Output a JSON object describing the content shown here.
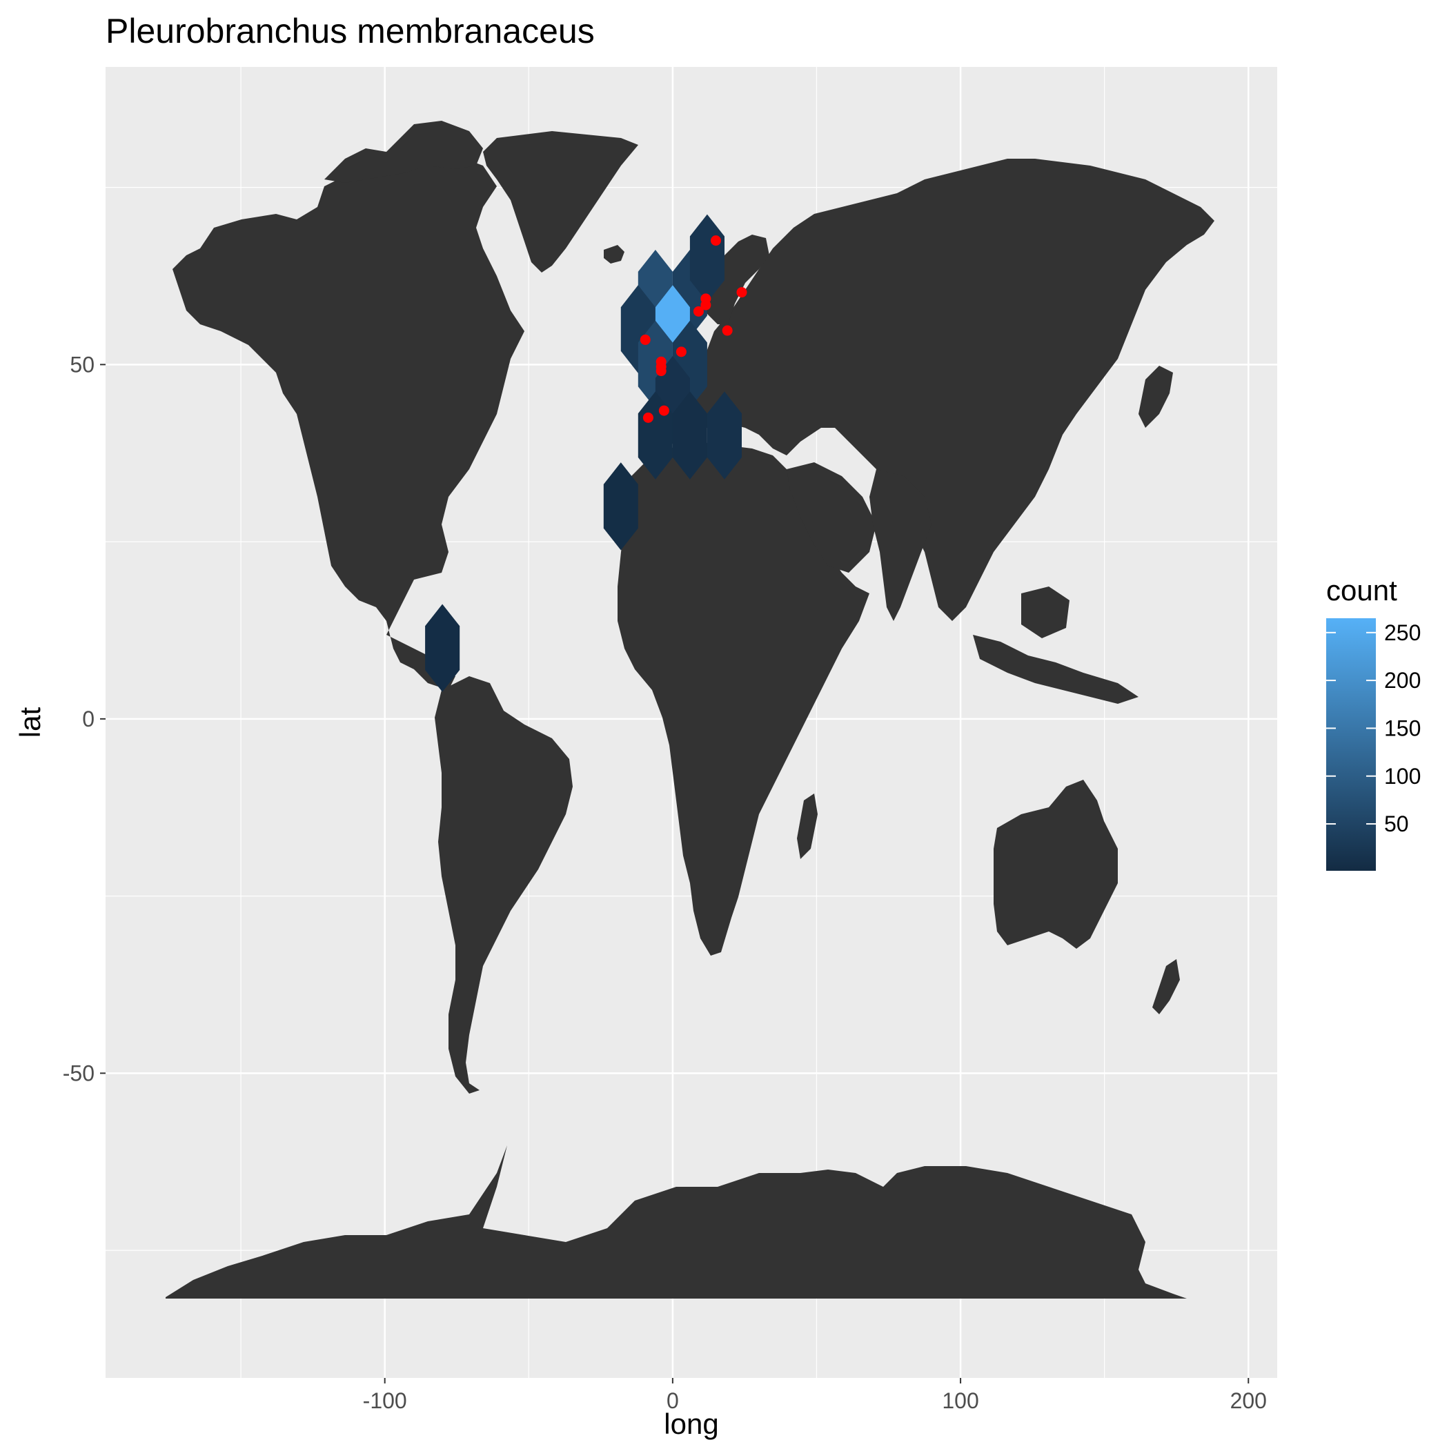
{
  "chart_data": {
    "type": "map-hexbin",
    "title": "Pleurobranchus membranaceus",
    "xlabel": "long",
    "ylabel": "lat",
    "xlim": [
      -197,
      210
    ],
    "ylim": [
      -93,
      92
    ],
    "x_ticks": [
      -100,
      0,
      100,
      200
    ],
    "y_ticks": [
      -50,
      0,
      50
    ],
    "x_tick_labels": [
      "-100",
      "0",
      "100",
      "200"
    ],
    "y_tick_labels": [
      "-50",
      "0",
      "50"
    ],
    "panel_background": "#ebebeb",
    "land_color": "#333333",
    "grid": true,
    "legend": {
      "title": "count",
      "position": "right",
      "ticks": [
        50,
        100,
        150,
        200,
        250
      ],
      "tick_labels": [
        "50",
        "100",
        "150",
        "200",
        "250"
      ],
      "min": 1,
      "max": 265,
      "color_low": "#132b43",
      "color_high": "#56b1f7"
    },
    "hexbins": [
      {
        "long": -6,
        "lat": 60,
        "count": 70
      },
      {
        "long": 6,
        "lat": 60,
        "count": 40
      },
      {
        "long": 12,
        "lat": 65,
        "count": 20
      },
      {
        "long": -12,
        "lat": 55,
        "count": 30
      },
      {
        "long": 0,
        "lat": 55,
        "count": 262
      },
      {
        "long": -6,
        "lat": 50,
        "count": 60
      },
      {
        "long": 6,
        "lat": 50,
        "count": 30
      },
      {
        "long": 0,
        "lat": 45,
        "count": 15
      },
      {
        "long": -6,
        "lat": 40,
        "count": 10
      },
      {
        "long": 6,
        "lat": 40,
        "count": 8
      },
      {
        "long": 18,
        "lat": 40,
        "count": 12
      },
      {
        "long": -18,
        "lat": 30,
        "count": 6
      },
      {
        "long": -80,
        "lat": 10,
        "count": 5
      }
    ],
    "points": [
      {
        "long": 15,
        "lat": 67.5
      },
      {
        "long": 24,
        "lat": 60.2
      },
      {
        "long": 11.5,
        "lat": 59.3
      },
      {
        "long": 11.5,
        "lat": 58.4
      },
      {
        "long": 9,
        "lat": 57.5
      },
      {
        "long": 19,
        "lat": 54.8
      },
      {
        "long": -9.5,
        "lat": 53.5
      },
      {
        "long": 3,
        "lat": 51.8
      },
      {
        "long": -4,
        "lat": 50.4
      },
      {
        "long": -4,
        "lat": 49.7
      },
      {
        "long": -4,
        "lat": 49.1
      },
      {
        "long": -3,
        "lat": 43.5
      },
      {
        "long": -8.5,
        "lat": 42.5
      }
    ],
    "point_color": "#ff0000"
  }
}
